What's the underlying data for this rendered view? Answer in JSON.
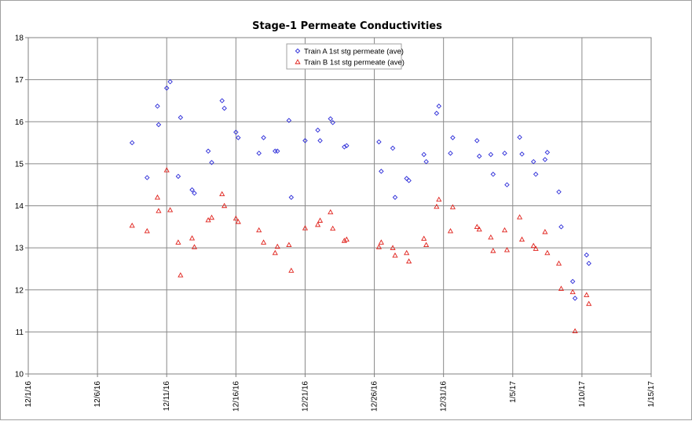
{
  "chart_data": {
    "type": "scatter",
    "title": "Stage-1 Permeate Conductivities",
    "xlabel": "",
    "ylabel": "",
    "xlim": [
      "2016-12-01",
      "2017-01-15"
    ],
    "ylim": [
      10,
      18
    ],
    "y_ticks": [
      10,
      11,
      12,
      13,
      14,
      15,
      16,
      17,
      18
    ],
    "x_ticks": [
      "2016-12-01",
      "2016-12-06",
      "2016-12-11",
      "2016-12-16",
      "2016-12-21",
      "2016-12-26",
      "2016-12-31",
      "2017-01-05",
      "2017-01-10",
      "2017-01-15"
    ],
    "x_tick_labels": [
      "12/1/16",
      "12/6/16",
      "12/11/16",
      "12/16/16",
      "12/21/16",
      "12/26/16",
      "12/31/16",
      "1/5/17",
      "1/10/17",
      "1/15/17"
    ],
    "grid": true,
    "legend_position": "top-center",
    "series": [
      {
        "name": "Train A 1st stg permeate (ave)",
        "marker": "diamond",
        "color": "#2a2ad8",
        "points": [
          [
            "2016-12-08T12:00",
            15.5
          ],
          [
            "2016-12-09T14:00",
            14.67
          ],
          [
            "2016-12-10T08:00",
            16.37
          ],
          [
            "2016-12-10T10:00",
            15.93
          ],
          [
            "2016-12-11T00:00",
            16.8
          ],
          [
            "2016-12-11T06:00",
            16.95
          ],
          [
            "2016-12-11T20:00",
            14.7
          ],
          [
            "2016-12-12T00:00",
            16.1
          ],
          [
            "2016-12-12T20:00",
            14.38
          ],
          [
            "2016-12-13T00:00",
            14.3
          ],
          [
            "2016-12-14T00:00",
            15.3
          ],
          [
            "2016-12-14T06:00",
            15.03
          ],
          [
            "2016-12-15T00:00",
            16.5
          ],
          [
            "2016-12-15T04:00",
            16.32
          ],
          [
            "2016-12-16T00:00",
            15.75
          ],
          [
            "2016-12-16T04:00",
            15.62
          ],
          [
            "2016-12-17T16:00",
            15.25
          ],
          [
            "2016-12-18T00:00",
            15.62
          ],
          [
            "2016-12-18T20:00",
            15.3
          ],
          [
            "2016-12-19T00:00",
            15.3
          ],
          [
            "2016-12-19T20:00",
            16.03
          ],
          [
            "2016-12-20T00:00",
            14.2
          ],
          [
            "2016-12-21T00:00",
            15.55
          ],
          [
            "2016-12-21T22:00",
            15.8
          ],
          [
            "2016-12-22T02:00",
            15.55
          ],
          [
            "2016-12-22T20:00",
            16.07
          ],
          [
            "2016-12-23T00:00",
            15.98
          ],
          [
            "2016-12-23T20:00",
            15.4
          ],
          [
            "2016-12-24T00:00",
            15.43
          ],
          [
            "2016-12-26T08:00",
            15.52
          ],
          [
            "2016-12-26T12:00",
            14.82
          ],
          [
            "2016-12-27T08:00",
            15.37
          ],
          [
            "2016-12-27T12:00",
            14.2
          ],
          [
            "2016-12-28T08:00",
            14.65
          ],
          [
            "2016-12-28T12:00",
            14.6
          ],
          [
            "2016-12-29T14:00",
            15.22
          ],
          [
            "2016-12-29T18:00",
            15.05
          ],
          [
            "2016-12-30T12:00",
            16.2
          ],
          [
            "2016-12-30T16:00",
            16.37
          ],
          [
            "2016-12-31T12:00",
            15.25
          ],
          [
            "2016-12-31T16:00",
            15.62
          ],
          [
            "2017-01-02T10:00",
            15.55
          ],
          [
            "2017-01-02T14:00",
            15.18
          ],
          [
            "2017-01-03T10:00",
            15.22
          ],
          [
            "2017-01-03T14:00",
            14.75
          ],
          [
            "2017-01-04T10:00",
            15.25
          ],
          [
            "2017-01-04T14:00",
            14.5
          ],
          [
            "2017-01-05T12:00",
            15.63
          ],
          [
            "2017-01-05T16:00",
            15.23
          ],
          [
            "2017-01-06T12:00",
            15.05
          ],
          [
            "2017-01-06T16:00",
            14.75
          ],
          [
            "2017-01-07T08:00",
            15.1
          ],
          [
            "2017-01-07T12:00",
            15.27
          ],
          [
            "2017-01-08T08:00",
            14.33
          ],
          [
            "2017-01-08T12:00",
            13.5
          ],
          [
            "2017-01-09T08:00",
            12.2
          ],
          [
            "2017-01-09T12:00",
            11.8
          ],
          [
            "2017-01-10T08:00",
            12.83
          ],
          [
            "2017-01-10T12:00",
            12.63
          ]
        ]
      },
      {
        "name": "Train B 1st stg permeate (ave)",
        "marker": "triangle",
        "color": "#e0201a",
        "points": [
          [
            "2016-12-08T12:00",
            13.53
          ],
          [
            "2016-12-09T14:00",
            13.4
          ],
          [
            "2016-12-10T08:00",
            14.2
          ],
          [
            "2016-12-10T10:00",
            13.88
          ],
          [
            "2016-12-11T00:00",
            14.85
          ],
          [
            "2016-12-11T06:00",
            13.9
          ],
          [
            "2016-12-11T20:00",
            13.13
          ],
          [
            "2016-12-12T00:00",
            12.35
          ],
          [
            "2016-12-12T20:00",
            13.23
          ],
          [
            "2016-12-13T00:00",
            13.02
          ],
          [
            "2016-12-14T00:00",
            13.66
          ],
          [
            "2016-12-14T06:00",
            13.72
          ],
          [
            "2016-12-15T00:00",
            14.28
          ],
          [
            "2016-12-15T04:00",
            14.0
          ],
          [
            "2016-12-16T00:00",
            13.7
          ],
          [
            "2016-12-16T04:00",
            13.62
          ],
          [
            "2016-12-17T16:00",
            13.42
          ],
          [
            "2016-12-18T00:00",
            13.13
          ],
          [
            "2016-12-18T20:00",
            12.88
          ],
          [
            "2016-12-19T00:00",
            13.03
          ],
          [
            "2016-12-19T20:00",
            13.07
          ],
          [
            "2016-12-20T00:00",
            12.46
          ],
          [
            "2016-12-21T00:00",
            13.47
          ],
          [
            "2016-12-21T22:00",
            13.55
          ],
          [
            "2016-12-22T02:00",
            13.65
          ],
          [
            "2016-12-22T20:00",
            13.85
          ],
          [
            "2016-12-23T00:00",
            13.46
          ],
          [
            "2016-12-23T20:00",
            13.17
          ],
          [
            "2016-12-24T00:00",
            13.2
          ],
          [
            "2016-12-26T08:00",
            13.02
          ],
          [
            "2016-12-26T12:00",
            13.13
          ],
          [
            "2016-12-27T08:00",
            13.0
          ],
          [
            "2016-12-27T12:00",
            12.82
          ],
          [
            "2016-12-28T08:00",
            12.88
          ],
          [
            "2016-12-28T12:00",
            12.68
          ],
          [
            "2016-12-29T14:00",
            13.22
          ],
          [
            "2016-12-29T18:00",
            13.07
          ],
          [
            "2016-12-30T12:00",
            13.98
          ],
          [
            "2016-12-30T16:00",
            14.15
          ],
          [
            "2016-12-31T12:00",
            13.4
          ],
          [
            "2016-12-31T16:00",
            13.97
          ],
          [
            "2017-01-02T10:00",
            13.5
          ],
          [
            "2017-01-02T14:00",
            13.44
          ],
          [
            "2017-01-03T10:00",
            13.25
          ],
          [
            "2017-01-03T14:00",
            12.93
          ],
          [
            "2017-01-04T10:00",
            13.42
          ],
          [
            "2017-01-04T14:00",
            12.95
          ],
          [
            "2017-01-05T12:00",
            13.73
          ],
          [
            "2017-01-05T16:00",
            13.2
          ],
          [
            "2017-01-06T12:00",
            13.05
          ],
          [
            "2017-01-06T16:00",
            12.98
          ],
          [
            "2017-01-07T08:00",
            13.38
          ],
          [
            "2017-01-07T12:00",
            12.88
          ],
          [
            "2017-01-08T08:00",
            12.63
          ],
          [
            "2017-01-08T12:00",
            12.03
          ],
          [
            "2017-01-09T08:00",
            11.95
          ],
          [
            "2017-01-09T12:00",
            11.02
          ],
          [
            "2017-01-10T08:00",
            11.88
          ],
          [
            "2017-01-10T12:00",
            11.67
          ]
        ]
      }
    ]
  }
}
